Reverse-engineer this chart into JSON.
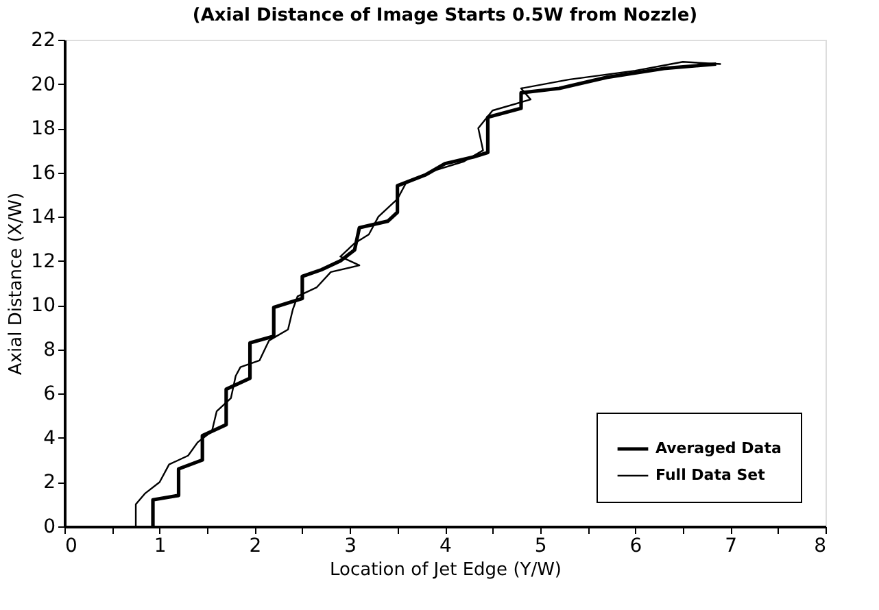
{
  "chart_data": {
    "type": "line",
    "title": "(Axial Distance of Image Starts 0.5W from Nozzle)",
    "xlabel": "Location of Jet Edge (Y/W)",
    "ylabel": "Axial Distance (X/W)",
    "xlim": [
      0,
      8
    ],
    "ylim": [
      0,
      22
    ],
    "xticks": [
      0,
      {
        "value": 0.5,
        "label": null
      },
      1,
      {
        "value": 1.5,
        "label": null
      },
      2,
      {
        "value": 2.5,
        "label": null
      },
      3,
      {
        "value": 3.5,
        "label": null
      },
      4,
      {
        "value": 4.5,
        "label": null
      },
      5,
      {
        "value": 5.5,
        "label": null
      },
      6,
      {
        "value": 6.5,
        "label": null
      },
      7,
      {
        "value": 7.5,
        "label": null
      },
      8
    ],
    "yticks": [
      0,
      2,
      4,
      6,
      8,
      10,
      12,
      14,
      16,
      18,
      20,
      22
    ],
    "grid": false,
    "legend": "bottom right",
    "marker": "none",
    "line_style": "solid",
    "series": [
      {
        "name": "Averaged Data",
        "color": "#000000",
        "x": [
          0.93,
          0.93,
          1.2,
          1.2,
          1.45,
          1.45,
          1.7,
          1.7,
          1.95,
          1.95,
          2.2,
          2.2,
          2.5,
          2.5,
          2.7,
          2.9,
          3.05,
          3.1,
          3.4,
          3.5,
          3.5,
          3.8,
          4.0,
          4.3,
          4.45,
          4.45,
          4.8,
          4.8,
          5.2,
          5.7,
          6.3,
          6.85
        ],
        "values": [
          0,
          1.2,
          1.4,
          2.6,
          3.0,
          4.1,
          4.6,
          6.2,
          6.7,
          8.3,
          8.6,
          9.9,
          10.3,
          11.3,
          11.6,
          12.0,
          12.5,
          13.5,
          13.8,
          14.2,
          15.4,
          15.9,
          16.4,
          16.7,
          16.9,
          18.5,
          18.9,
          19.6,
          19.8,
          20.3,
          20.7,
          20.9
        ]
      },
      {
        "name": "Full Data Set",
        "color": "#000000",
        "x": [
          0.75,
          0.75,
          0.85,
          1.0,
          1.1,
          1.3,
          1.4,
          1.55,
          1.6,
          1.75,
          1.8,
          1.85,
          2.05,
          2.15,
          2.35,
          2.4,
          2.45,
          2.65,
          2.8,
          3.1,
          2.9,
          3.05,
          3.2,
          3.3,
          3.5,
          3.6,
          3.9,
          4.2,
          4.4,
          4.35,
          4.5,
          4.9,
          4.8,
          5.3,
          6.0,
          6.5,
          6.9
        ],
        "values": [
          0,
          1.0,
          1.5,
          2.0,
          2.8,
          3.2,
          3.8,
          4.3,
          5.2,
          5.8,
          6.8,
          7.2,
          7.5,
          8.4,
          8.9,
          9.8,
          10.4,
          10.8,
          11.5,
          11.8,
          12.2,
          12.8,
          13.2,
          14.0,
          14.8,
          15.6,
          16.1,
          16.5,
          17.0,
          18.0,
          18.8,
          19.3,
          19.8,
          20.2,
          20.6,
          21.0,
          20.9
        ]
      }
    ]
  }
}
